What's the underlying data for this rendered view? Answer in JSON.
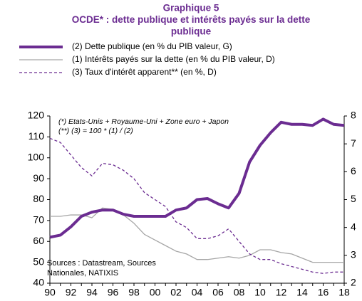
{
  "chart_data": {
    "type": "line",
    "title": [
      "Graphique 5",
      "OCDE* : dette publique et intérêts payés sur la dette",
      "publique"
    ],
    "annotations": [
      "(*) Etats-Unis + Royaume-Uni  + Zone euro + Japon",
      "(**) (3) = 100 * (1) / (2)"
    ],
    "sources": [
      "Sources : Datastream, Sources",
      "Nationales, NATIXIS"
    ],
    "categories": [
      "90",
      null,
      "92",
      null,
      "94",
      null,
      "96",
      null,
      "98",
      null,
      "00",
      null,
      "02",
      null,
      "04",
      null,
      "06",
      null,
      "08",
      null,
      "10",
      null,
      "12",
      null,
      "14",
      null,
      "16",
      null,
      "18"
    ],
    "ylim": [
      40,
      120
    ],
    "yticks": [
      40,
      50,
      60,
      70,
      80,
      90,
      100,
      110,
      120
    ],
    "y2lim": [
      2,
      8
    ],
    "y2ticks": [
      2,
      3,
      4,
      5,
      6,
      7,
      8
    ],
    "series": [
      {
        "name": "(2) Dette publique (en % du PIB valeur, G)",
        "color": "#6b2c91",
        "width": 4,
        "dashed": false,
        "axis": "y",
        "values": [
          62,
          63,
          67,
          72,
          74,
          75,
          75,
          73,
          72,
          72,
          72,
          72,
          75,
          76,
          80,
          80.5,
          78,
          76,
          83,
          98,
          106,
          112,
          117,
          116,
          116,
          115.5,
          118.5,
          116,
          115.5
        ]
      },
      {
        "name": "(1) Intérêts payés sur la dette (en % du PIB valeur, D)",
        "color": "#a6a6a6",
        "width": 1.3,
        "dashed": false,
        "axis": "y2",
        "values": [
          4.4,
          4.4,
          4.45,
          4.45,
          4.35,
          4.7,
          4.65,
          4.45,
          4.15,
          3.75,
          3.55,
          3.35,
          3.15,
          3.05,
          2.85,
          2.85,
          2.9,
          2.95,
          2.9,
          3.0,
          3.2,
          3.2,
          3.1,
          3.05,
          2.9,
          2.75,
          2.75,
          2.75,
          2.75
        ]
      },
      {
        "name": "(3) Taux d'intérêt apparent** (en %, D)",
        "color": "#6b2c91",
        "width": 1.3,
        "dashed": true,
        "axis": "y2",
        "values": [
          7.2,
          7.05,
          6.6,
          6.15,
          5.85,
          6.3,
          6.25,
          6.05,
          5.75,
          5.25,
          5.0,
          4.75,
          4.2,
          4.0,
          3.6,
          3.6,
          3.7,
          3.95,
          3.5,
          3.05,
          2.85,
          2.85,
          2.7,
          2.6,
          2.5,
          2.4,
          2.35,
          2.4,
          2.4
        ]
      }
    ]
  }
}
